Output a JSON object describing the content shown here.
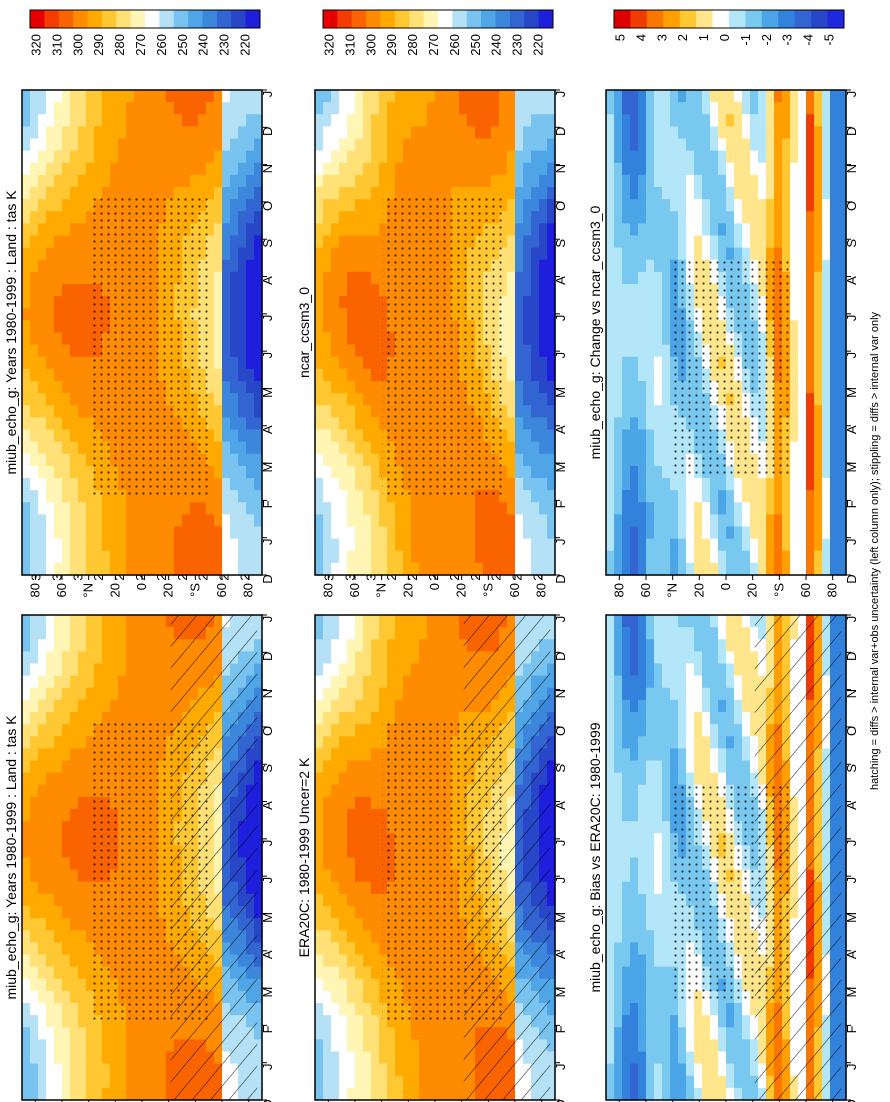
{
  "chart_data": [
    {
      "type": "heatmap",
      "title": "miub_echo_g: Years 1980-1999 : Land : tas K",
      "months": [
        "D",
        "J",
        "F",
        "M",
        "A",
        "M",
        "J",
        "J",
        "A",
        "S",
        "O",
        "N",
        "D",
        "J"
      ],
      "lat_labels": [
        "80",
        "60",
        "°N",
        "20",
        "0",
        "20",
        "°S",
        "60",
        "80"
      ],
      "colorbar_ticks": [
        "320",
        "310",
        "300",
        "290",
        "280",
        "270",
        "260",
        "250",
        "240",
        "230",
        "220"
      ],
      "cmap": "abs",
      "hatching": "south",
      "stipple": "dense"
    },
    {
      "type": "heatmap",
      "title": "miub_echo_g: Years 1980-1999 : Land : tas K",
      "months": [
        "D",
        "J",
        "F",
        "M",
        "A",
        "M",
        "J",
        "J",
        "A",
        "S",
        "O",
        "N",
        "D",
        "J"
      ],
      "lat_labels": [
        "80",
        "60",
        "°N",
        "20",
        "0",
        "20",
        "°S",
        "60",
        "80"
      ],
      "colorbar_ticks": [
        "320",
        "310",
        "300",
        "290",
        "280",
        "270",
        "260",
        "250",
        "240",
        "230",
        "220"
      ],
      "cmap": "abs",
      "hatching": "none",
      "stipple": "dense"
    },
    {
      "type": "heatmap",
      "title": "ERA20C: 1980-1999 Uncer=2 K",
      "months": [
        "D",
        "J",
        "F",
        "M",
        "A",
        "M",
        "J",
        "J",
        "A",
        "S",
        "O",
        "N",
        "D",
        "J"
      ],
      "lat_labels": [
        "80",
        "60",
        "°N",
        "20",
        "0",
        "20",
        "°S",
        "60",
        "80"
      ],
      "colorbar_ticks": [
        "320",
        "310",
        "300",
        "290",
        "280",
        "270",
        "260",
        "250",
        "240",
        "230",
        "220"
      ],
      "cmap": "abs",
      "hatching": "south",
      "stipple": "dense"
    },
    {
      "type": "heatmap",
      "title": "ncar_ccsm3_0",
      "months": [
        "D",
        "J",
        "F",
        "M",
        "A",
        "M",
        "J",
        "J",
        "A",
        "S",
        "O",
        "N",
        "D",
        "J"
      ],
      "lat_labels": [
        "80",
        "60",
        "°N",
        "20",
        "0",
        "20",
        "°S",
        "60",
        "80"
      ],
      "colorbar_ticks": [
        "320",
        "310",
        "300",
        "290",
        "280",
        "270",
        "260",
        "250",
        "240",
        "230",
        "220"
      ],
      "cmap": "abs",
      "hatching": "none",
      "stipple": "dense"
    },
    {
      "type": "heatmap",
      "title": "miub_echo_g: Bias vs ERA20C: 1980-1999",
      "months": [
        "D",
        "J",
        "F",
        "M",
        "A",
        "M",
        "J",
        "J",
        "A",
        "S",
        "O",
        "N",
        "D",
        "J"
      ],
      "lat_labels": [
        "80",
        "60",
        "°N",
        "20",
        "0",
        "20",
        "°S",
        "60",
        "80"
      ],
      "colorbar_ticks": [
        "5",
        "4",
        "3",
        "2",
        "1",
        "0",
        "-1",
        "-2",
        "-3",
        "-4",
        "-5"
      ],
      "cmap": "diff",
      "hatching": "south",
      "stipple": "sparse"
    },
    {
      "type": "heatmap",
      "title": "miub_echo_g: Change vs ncar_ccsm3_0",
      "months": [
        "D",
        "J",
        "F",
        "M",
        "A",
        "M",
        "J",
        "J",
        "A",
        "S",
        "O",
        "N",
        "D",
        "J"
      ],
      "lat_labels": [
        "80",
        "60",
        "°N",
        "20",
        "0",
        "20",
        "°S",
        "60",
        "80"
      ],
      "colorbar_ticks": [
        "5",
        "4",
        "3",
        "2",
        "1",
        "0",
        "-1",
        "-2",
        "-3",
        "-4",
        "-5"
      ],
      "cmap": "diff",
      "hatching": "none",
      "stipple": "sparse"
    }
  ],
  "footnote": "hatching = diffs > internal var+obs uncertainty (left column only); stippling = diffs > internal var only",
  "colors": {
    "abs_scale": [
      "#e60000",
      "#f23c00",
      "#fa6400",
      "#ff8c00",
      "#ffaa00",
      "#ffc832",
      "#ffe178",
      "#fff5b4",
      "#ffffff",
      "#b4e1f5",
      "#78c3f0",
      "#50a5e6",
      "#3c87dc",
      "#3264d2",
      "#2846c8",
      "#1e1edc"
    ],
    "diff_scale": [
      "#dc0000",
      "#f03c00",
      "#fa7800",
      "#ffa000",
      "#ffc832",
      "#ffe68c",
      "#ffffff",
      "#b4e6fa",
      "#78c8f0",
      "#4ba5e6",
      "#3282dc",
      "#3264d2",
      "#2846c8",
      "#1e28dc"
    ]
  }
}
